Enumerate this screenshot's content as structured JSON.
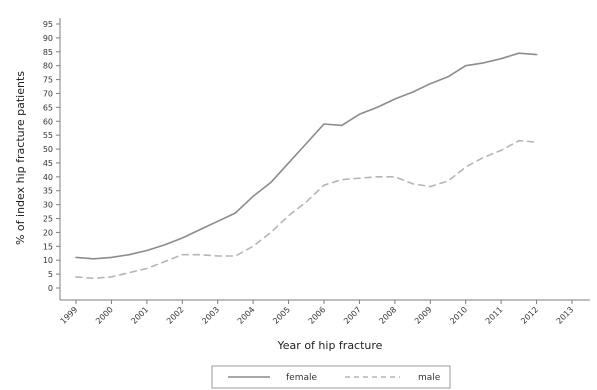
{
  "chart_data": {
    "type": "line",
    "xlabel": "Year of hip fracture",
    "ylabel": "% of index hip fracture patients",
    "x": [
      1999,
      1999.5,
      2000,
      2000.5,
      2001,
      2001.5,
      2002,
      2002.5,
      2003,
      2003.5,
      2004,
      2004.5,
      2005,
      2005.5,
      2006,
      2006.5,
      2007,
      2007.5,
      2008,
      2008.5,
      2009,
      2009.5,
      2010,
      2010.5,
      2011,
      2011.5,
      2012
    ],
    "xticks": [
      "1999",
      "2000",
      "2001",
      "2002",
      "2003",
      "2004",
      "2005",
      "2006",
      "2007",
      "2008",
      "2009",
      "2010",
      "2011",
      "2012",
      "2013"
    ],
    "yticks": [
      "0",
      "5",
      "10",
      "15",
      "20",
      "25",
      "30",
      "35",
      "40",
      "45",
      "50",
      "55",
      "60",
      "65",
      "70",
      "75",
      "80",
      "85",
      "90",
      "95"
    ],
    "xlim": [
      1999,
      2013
    ],
    "ylim": [
      0,
      95
    ],
    "series": [
      {
        "name": "female",
        "style": "solid",
        "color": "#8c8c8c",
        "values": [
          11,
          10.5,
          11,
          12,
          13.5,
          15.5,
          18,
          21,
          24,
          27,
          33,
          38,
          45,
          52,
          59,
          58.5,
          62.5,
          65,
          68,
          70.5,
          73.5,
          76,
          80,
          81,
          82.5,
          84.5,
          84
        ]
      },
      {
        "name": "male",
        "style": "dashed",
        "color": "#b5b5b5",
        "values": [
          4,
          3.5,
          4,
          5.5,
          7,
          9.5,
          12,
          12,
          11.5,
          11.5,
          15,
          20,
          26,
          31,
          37,
          39,
          39.5,
          40,
          40,
          37.5,
          36.5,
          38.5,
          43.5,
          47,
          49.5,
          53,
          52.5
        ]
      }
    ],
    "grid": false,
    "legend": {
      "position": "bottom-center",
      "entries": [
        "female",
        "male"
      ]
    }
  }
}
